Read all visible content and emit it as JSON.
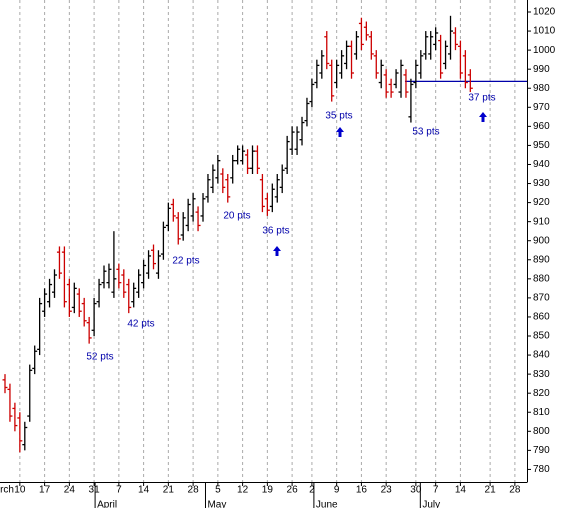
{
  "chart_data": {
    "type": "ohlc",
    "x": [
      0,
      1,
      2,
      3,
      4,
      5,
      6,
      7,
      8,
      9,
      10,
      11,
      12,
      13,
      14,
      15,
      16,
      17,
      18,
      19,
      20,
      21,
      22,
      23,
      24,
      25,
      26,
      27,
      28,
      29,
      30,
      31,
      32,
      33,
      34,
      35,
      36,
      37,
      38,
      39,
      40,
      41,
      42,
      43,
      44,
      45,
      46,
      47,
      48,
      49,
      50,
      51,
      52,
      53,
      54,
      55,
      56,
      57,
      58,
      59,
      60,
      61,
      62,
      63,
      64,
      65,
      66,
      67,
      68,
      69,
      70,
      71,
      72,
      73,
      74,
      75,
      76,
      77,
      78,
      79,
      80,
      81,
      82,
      83,
      84,
      85,
      86,
      87,
      88,
      89,
      90,
      91,
      92,
      93,
      94
    ],
    "open": [
      827,
      822,
      812,
      807,
      793,
      808,
      833,
      843,
      863,
      868,
      873,
      894,
      894,
      877,
      865,
      872,
      867,
      857,
      853,
      868,
      878,
      878,
      873,
      885,
      882,
      877,
      868,
      873,
      878,
      883,
      895,
      883,
      893,
      908,
      919,
      912,
      903,
      908,
      913,
      915,
      913,
      923,
      928,
      933,
      935,
      932,
      933,
      942,
      942,
      945,
      938,
      947,
      932,
      922,
      918,
      923,
      928,
      938,
      948,
      948,
      953,
      963,
      973,
      983,
      988,
      1007,
      992,
      983,
      988,
      993,
      1002,
      998,
      1014,
      1012,
      1007,
      997,
      983,
      987,
      982,
      982,
      978,
      987,
      965,
      983,
      988,
      998,
      998,
      1003,
      1005,
      993,
      998,
      1009,
      1002,
      997,
      987
    ],
    "high": [
      830,
      825,
      815,
      810,
      805,
      835,
      845,
      870,
      875,
      880,
      885,
      897,
      897,
      880,
      878,
      875,
      870,
      860,
      870,
      880,
      887,
      888,
      905,
      888,
      885,
      880,
      878,
      885,
      890,
      895,
      898,
      895,
      910,
      920,
      922,
      915,
      915,
      922,
      925,
      918,
      925,
      935,
      940,
      945,
      938,
      935,
      945,
      950,
      950,
      948,
      950,
      950,
      935,
      925,
      930,
      935,
      940,
      955,
      960,
      960,
      965,
      975,
      985,
      995,
      1000,
      1010,
      995,
      995,
      1000,
      1005,
      1005,
      1010,
      1017,
      1015,
      1010,
      1000,
      995,
      990,
      985,
      990,
      995,
      990,
      985,
      995,
      1000,
      1010,
      1010,
      1012,
      1008,
      1005,
      1018,
      1012,
      1005,
      1000,
      990
    ],
    "low": [
      820,
      805,
      800,
      789,
      790,
      805,
      830,
      840,
      860,
      865,
      870,
      880,
      865,
      860,
      862,
      860,
      855,
      846,
      850,
      865,
      875,
      875,
      870,
      875,
      870,
      862,
      865,
      870,
      875,
      880,
      885,
      880,
      890,
      905,
      910,
      898,
      900,
      905,
      910,
      905,
      910,
      920,
      925,
      930,
      925,
      920,
      930,
      940,
      940,
      935,
      935,
      935,
      915,
      913,
      915,
      920,
      925,
      935,
      945,
      945,
      950,
      960,
      970,
      980,
      985,
      990,
      973,
      980,
      985,
      990,
      985,
      995,
      1000,
      1005,
      995,
      985,
      980,
      975,
      975,
      980,
      975,
      975,
      962,
      980,
      985,
      995,
      995,
      1000,
      985,
      990,
      995,
      1000,
      985,
      980,
      978
    ],
    "close": [
      823,
      808,
      803,
      795,
      802,
      832,
      842,
      867,
      872,
      877,
      882,
      883,
      868,
      863,
      875,
      863,
      858,
      849,
      867,
      877,
      884,
      885,
      880,
      878,
      873,
      865,
      875,
      882,
      887,
      892,
      888,
      892,
      907,
      917,
      913,
      901,
      912,
      919,
      922,
      908,
      922,
      932,
      937,
      942,
      928,
      923,
      942,
      948,
      947,
      938,
      947,
      938,
      918,
      916,
      927,
      932,
      937,
      952,
      957,
      957,
      962,
      972,
      982,
      992,
      997,
      993,
      976,
      992,
      997,
      1002,
      988,
      1007,
      1003,
      1008,
      998,
      988,
      992,
      978,
      978,
      988,
      992,
      978,
      982,
      992,
      997,
      1007,
      1007,
      1009,
      988,
      1002,
      1010,
      1003,
      988,
      983,
      980
    ],
    "up_color": "#000000",
    "down_color": "#cc0000",
    "xlim": [
      -1.01,
      105.45
    ],
    "ylim": [
      773.4,
      1026.3
    ],
    "yticks": [
      780,
      790,
      800,
      810,
      820,
      830,
      840,
      850,
      860,
      870,
      880,
      890,
      900,
      910,
      920,
      930,
      940,
      950,
      960,
      970,
      980,
      990,
      1000,
      1010,
      1020
    ],
    "xticks": [
      {
        "value": 3,
        "label": "10"
      },
      {
        "value": 8,
        "label": "17"
      },
      {
        "value": 13,
        "label": "24"
      },
      {
        "value": 18,
        "label": "31"
      },
      {
        "value": 23,
        "label": "7"
      },
      {
        "value": 28,
        "label": "14"
      },
      {
        "value": 33,
        "label": "21"
      },
      {
        "value": 38,
        "label": "28"
      },
      {
        "value": 43,
        "label": "5"
      },
      {
        "value": 48,
        "label": "12"
      },
      {
        "value": 53,
        "label": "19"
      },
      {
        "value": 58,
        "label": "26"
      },
      {
        "value": 62,
        "label": "2"
      },
      {
        "value": 67,
        "label": "9"
      },
      {
        "value": 72,
        "label": "16"
      },
      {
        "value": 77,
        "label": "23"
      },
      {
        "value": 83,
        "label": "30"
      },
      {
        "value": 87,
        "label": "7"
      },
      {
        "value": 92,
        "label": "14"
      },
      {
        "value": 98,
        "label": "21"
      },
      {
        "value": 103,
        "label": "28"
      }
    ],
    "months": [
      {
        "value": -1.4,
        "label": "rch"
      },
      {
        "value": 18.2,
        "label": "April"
      },
      {
        "value": 40.5,
        "label": "May"
      },
      {
        "value": 62.4,
        "label": "June"
      },
      {
        "value": 83.9,
        "label": "July"
      }
    ],
    "grid": true,
    "hline": {
      "value": 983.6,
      "x_start": 80.8,
      "color": "#0000aa"
    },
    "annotations": [
      "52 pts",
      "42 pts",
      "22 pts",
      "20 pts",
      "36 pts",
      "35 pts",
      "53 pts",
      "37 pts"
    ]
  }
}
